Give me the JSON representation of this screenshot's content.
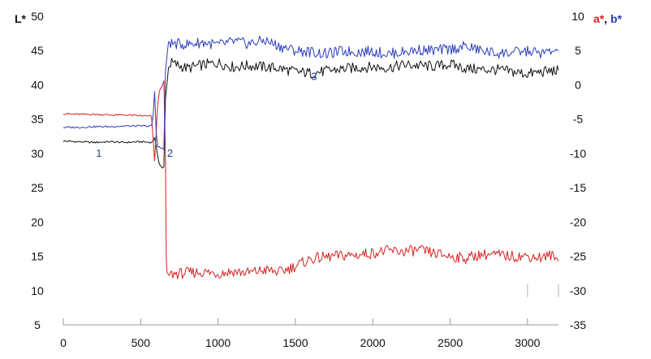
{
  "chart_data": {
    "type": "line",
    "ylabel_left": "L*",
    "ylabel_right_parts": [
      {
        "text": "a*",
        "color": "#d42020"
      },
      {
        "text": ", ",
        "color": "#111111"
      },
      {
        "text": "b*",
        "color": "#2a3dc0"
      }
    ],
    "xlim": [
      0,
      3200
    ],
    "ylim_left": [
      5,
      50
    ],
    "ylim_right": [
      -35,
      10
    ],
    "x_ticks": [
      "0",
      "500",
      "1000",
      "1500",
      "2000",
      "2500",
      "3000"
    ],
    "y_ticks_left": [
      "50",
      "45",
      "40",
      "35",
      "30",
      "25",
      "20",
      "15",
      "10",
      "5"
    ],
    "y_ticks_right": [
      "10",
      "5",
      "0",
      "-5",
      "-10",
      "-15",
      "-20",
      "-25",
      "-30",
      "-35"
    ],
    "annotations": [
      {
        "text": "1",
        "x": 230,
        "y": 29.5
      },
      {
        "text": "2",
        "x": 690,
        "y": 29.5
      },
      {
        "text": "3",
        "x": 1620,
        "y": 40.7
      }
    ],
    "series": [
      {
        "axis": "left",
        "color": "#111111",
        "x": [
          0,
          100,
          200,
          300,
          400,
          500,
          570,
          590,
          600,
          620,
          640,
          650,
          660,
          680,
          700,
          800,
          900,
          1000,
          1100,
          1200,
          1300,
          1400,
          1500,
          1600,
          1700,
          1800,
          1900,
          2000,
          2100,
          2200,
          2300,
          2400,
          2500,
          2600,
          2700,
          2800,
          2900,
          3000,
          3100,
          3200
        ],
        "y": [
          31.8,
          31.7,
          31.6,
          31.7,
          31.6,
          31.7,
          31.6,
          32.2,
          31.0,
          28.5,
          27.8,
          28.0,
          38.0,
          42.5,
          43.2,
          42.4,
          42.9,
          43.2,
          42.6,
          42.8,
          42.6,
          42.4,
          41.9,
          41.7,
          42.0,
          42.3,
          42.5,
          42.6,
          42.5,
          42.9,
          42.8,
          42.7,
          43.0,
          42.4,
          42.2,
          42.2,
          41.9,
          41.6,
          41.9,
          42.1
        ]
      },
      {
        "axis": "right",
        "color": "#d42020",
        "x": [
          0,
          100,
          200,
          300,
          400,
          500,
          570,
          590,
          600,
          610,
          620,
          640,
          650,
          660,
          665,
          670,
          680,
          700,
          800,
          900,
          1000,
          1100,
          1200,
          1300,
          1400,
          1500,
          1600,
          1700,
          1800,
          1900,
          2000,
          2100,
          2200,
          2300,
          2400,
          2500,
          2600,
          2700,
          2800,
          2900,
          3000,
          3100,
          3150,
          3200
        ],
        "y": [
          -4.2,
          -4.3,
          -4.3,
          -4.4,
          -4.4,
          -4.5,
          -4.6,
          -11.0,
          -7.0,
          -3.0,
          -1.0,
          0.0,
          0.5,
          -10.0,
          -25.0,
          -27.3,
          -27.8,
          -27.6,
          -27.4,
          -27.3,
          -27.5,
          -27.2,
          -27.4,
          -27.0,
          -27.3,
          -26.4,
          -25.4,
          -25.1,
          -24.9,
          -24.8,
          -24.5,
          -24.2,
          -24.3,
          -24.1,
          -24.6,
          -25.0,
          -25.3,
          -24.7,
          -24.8,
          -25.0,
          -25.0,
          -25.2,
          -24.8,
          -25.7
        ]
      },
      {
        "axis": "right",
        "color": "#2a3dc0",
        "x": [
          0,
          100,
          200,
          300,
          400,
          500,
          570,
          580,
          590,
          600,
          610,
          620,
          640,
          650,
          660,
          680,
          700,
          800,
          900,
          1000,
          1100,
          1200,
          1300,
          1400,
          1500,
          1600,
          1700,
          1800,
          1900,
          2000,
          2100,
          2200,
          2300,
          2400,
          2500,
          2600,
          2700,
          2800,
          2900,
          3000,
          3100,
          3150,
          3200
        ],
        "y": [
          -6.2,
          -6.2,
          -6.1,
          -6.1,
          -6.0,
          -6.0,
          -6.0,
          -4.5,
          -1.0,
          -7.0,
          -9.0,
          -9.0,
          -9.3,
          -9.5,
          2.0,
          6.3,
          6.0,
          5.9,
          6.2,
          5.8,
          6.3,
          6.0,
          6.5,
          5.6,
          5.0,
          4.8,
          4.5,
          4.9,
          4.8,
          4.9,
          4.5,
          4.8,
          5.1,
          5.0,
          5.2,
          5.6,
          5.0,
          4.6,
          4.7,
          4.9,
          4.6,
          4.8,
          5.1
        ]
      }
    ],
    "ticks": [
      {
        "x": 3000,
        "y": 10
      },
      {
        "x": 3200,
        "y": 10
      }
    ]
  }
}
